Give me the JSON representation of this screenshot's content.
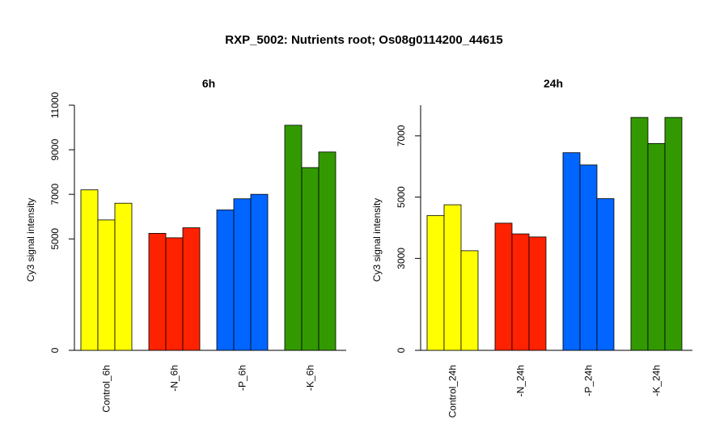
{
  "figure_title": "RXP_5002: Nutrients root; Os08g0114200_44615",
  "chart_data": [
    {
      "type": "bar",
      "title": "6h",
      "ylabel": "Cy3 signal intensity",
      "xlabel": "",
      "ylim": [
        0,
        11000
      ],
      "yticks": [
        0,
        5000,
        7000,
        9000,
        11000
      ],
      "categories": [
        "Control_6h",
        "-N_6h",
        "-P_6h",
        "-K_6h"
      ],
      "colors": [
        "#ffff00",
        "#ff2200",
        "#0066ff",
        "#339900"
      ],
      "groups": [
        {
          "category": "Control_6h",
          "values": [
            7200,
            5850,
            6600
          ]
        },
        {
          "category": "-N_6h",
          "values": [
            5250,
            5050,
            5500
          ]
        },
        {
          "category": "-P_6h",
          "values": [
            6300,
            6800,
            7000
          ]
        },
        {
          "category": "-K_6h",
          "values": [
            10100,
            8200,
            8900
          ]
        }
      ],
      "grid": false,
      "legend": "none"
    },
    {
      "type": "bar",
      "title": "24h",
      "ylabel": "Cy3 signal intensity",
      "xlabel": "",
      "ylim": [
        0,
        8000
      ],
      "yticks": [
        0,
        3000,
        5000,
        7000
      ],
      "categories": [
        "Control_24h",
        "-N_24h",
        "-P_24h",
        "-K_24h"
      ],
      "colors": [
        "#ffff00",
        "#ff2200",
        "#0066ff",
        "#339900"
      ],
      "groups": [
        {
          "category": "Control_24h",
          "values": [
            4400,
            4750,
            3250
          ]
        },
        {
          "category": "-N_24h",
          "values": [
            4150,
            3800,
            3700
          ]
        },
        {
          "category": "-P_24h",
          "values": [
            6450,
            6050,
            4950
          ]
        },
        {
          "category": "-K_24h",
          "values": [
            7600,
            6750,
            7600
          ]
        }
      ],
      "grid": false,
      "legend": "none"
    }
  ]
}
